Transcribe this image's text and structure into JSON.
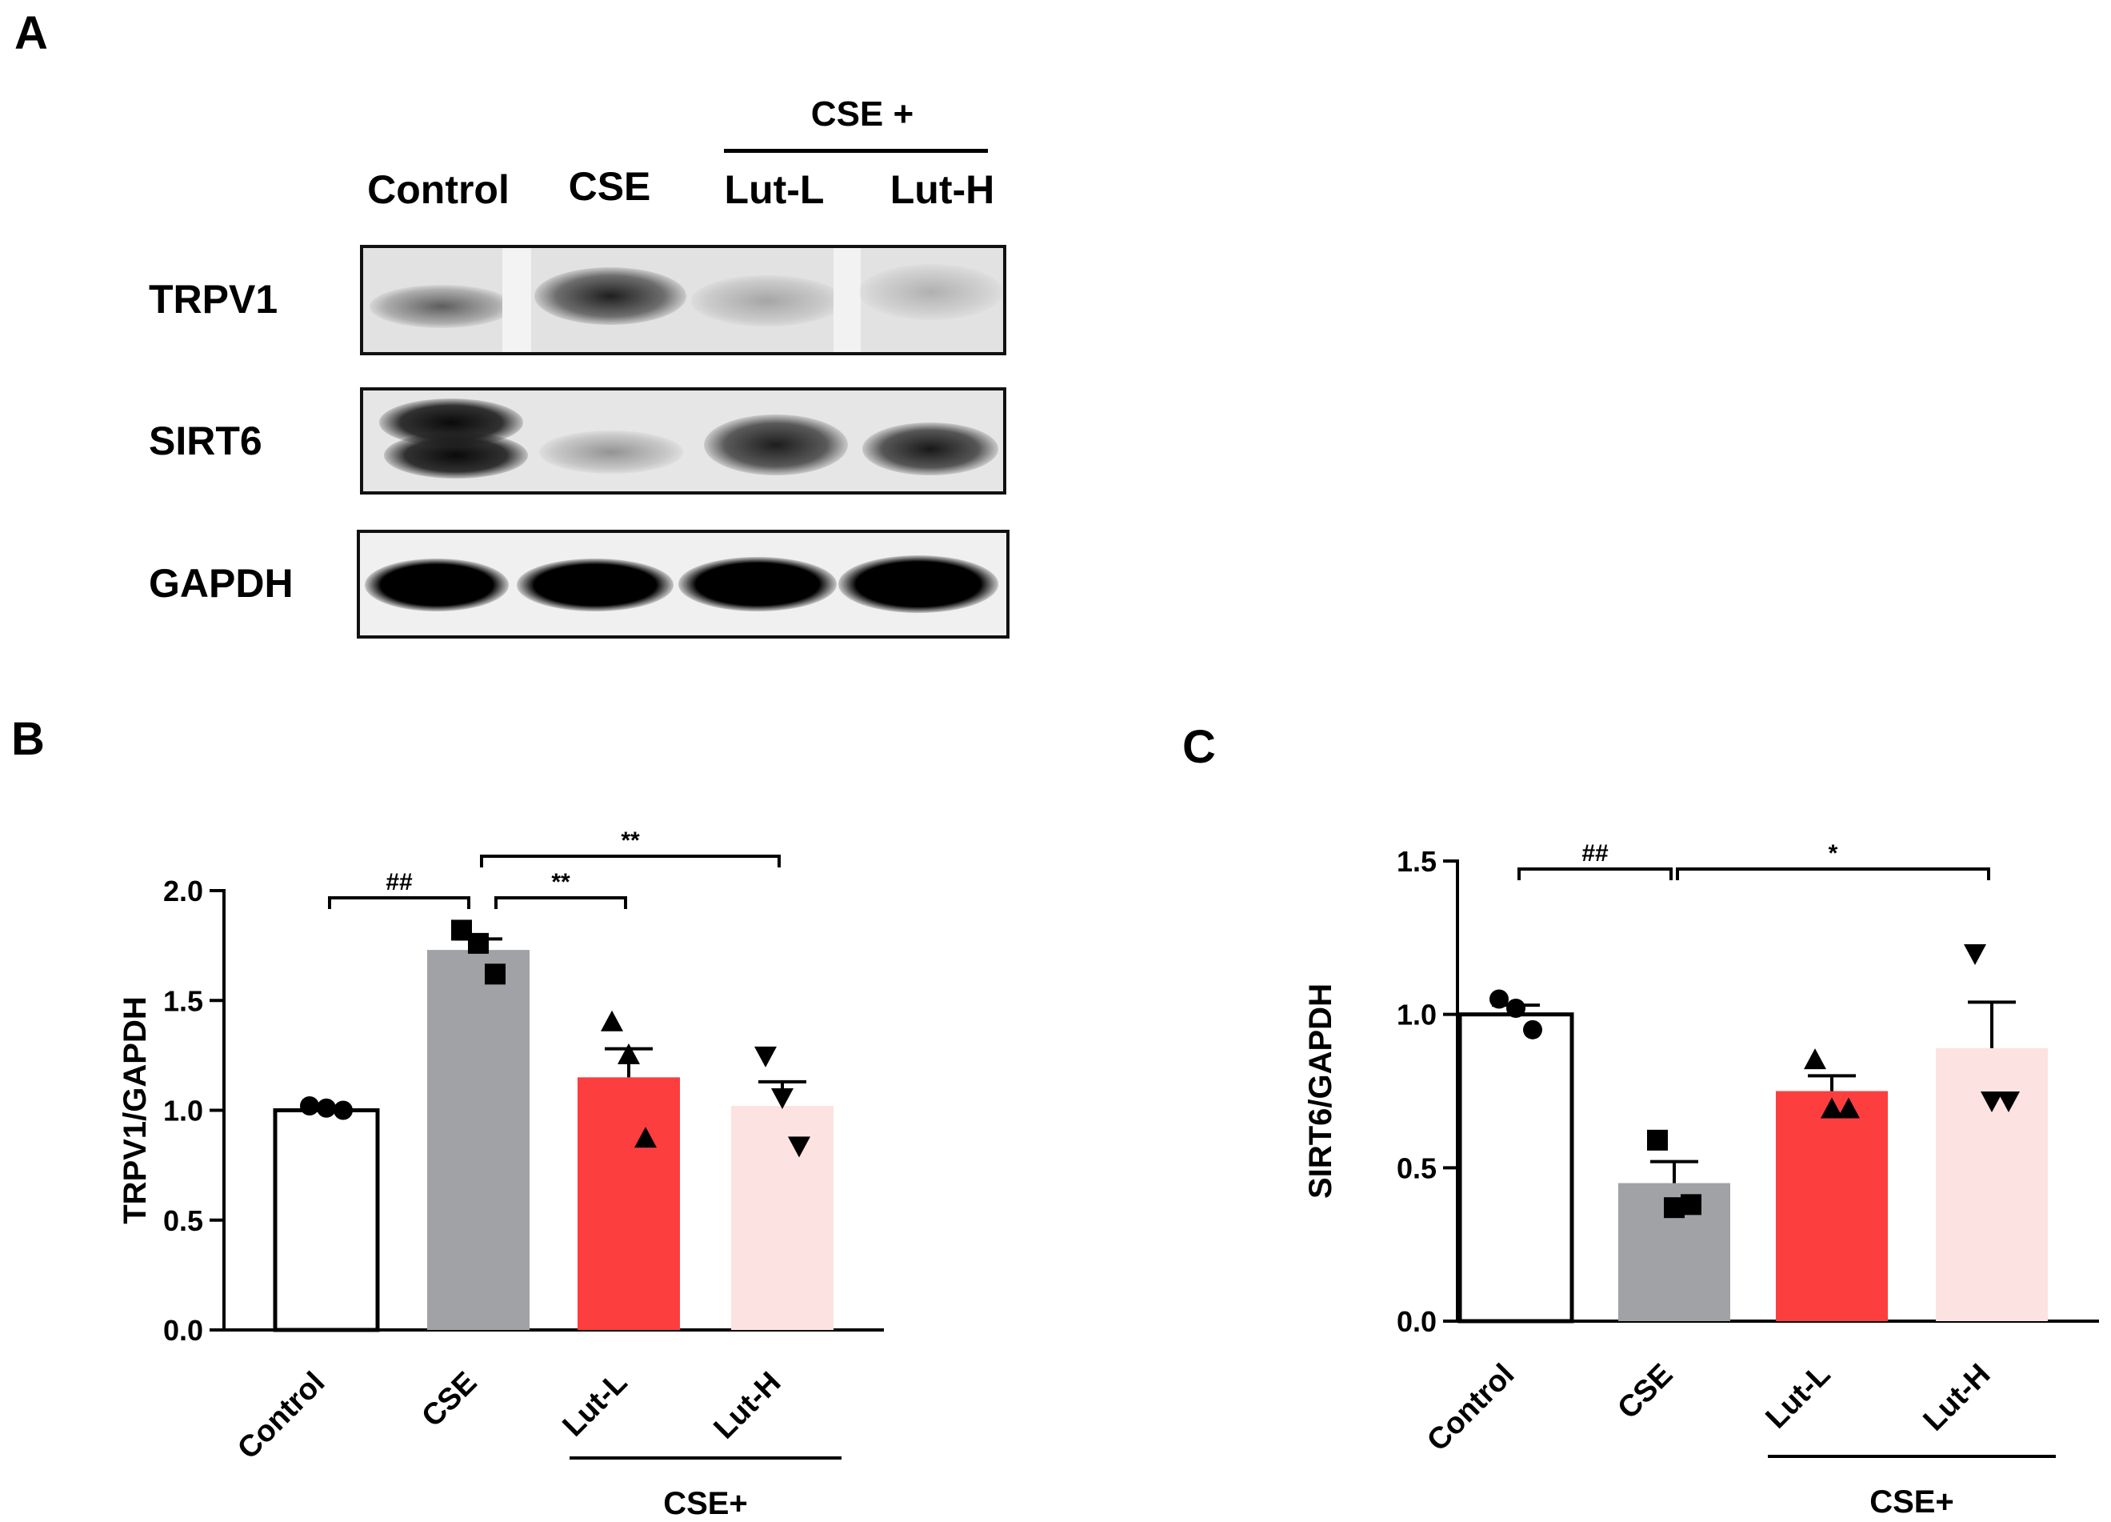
{
  "panels": {
    "a": "A",
    "b": "B",
    "c": "C"
  },
  "western_blot": {
    "group_label": "CSE +",
    "lanes": [
      "Control",
      "CSE",
      "Lut-L",
      "Lut-H"
    ],
    "rows": [
      "TRPV1",
      "SIRT6",
      "GAPDH"
    ]
  },
  "chart_data": [
    {
      "type": "bar",
      "panel": "B",
      "categories": [
        "Control",
        "CSE",
        "Lut-L",
        "Lut-H"
      ],
      "values": [
        1.0,
        1.73,
        1.15,
        1.02
      ],
      "errors": [
        0.0,
        0.05,
        0.13,
        0.11
      ],
      "points": [
        [
          1.02,
          1.01,
          1.0
        ],
        [
          1.82,
          1.76,
          1.62
        ],
        [
          1.4,
          1.25,
          0.87
        ],
        [
          1.25,
          1.06,
          0.84
        ]
      ],
      "markers": [
        "circle",
        "square",
        "triangle-up",
        "triangle-down"
      ],
      "colors": [
        "#ffffff",
        "#a0a2a6",
        "#fc3e3e",
        "#fde2e2"
      ],
      "ylabel": "TRPV1/GAPDH",
      "ylim": [
        0,
        2.0
      ],
      "yticks": [
        "0.0",
        "0.5",
        "1.0",
        "1.5",
        "2.0"
      ],
      "group_label": "CSE+",
      "significance": [
        {
          "from": "Control",
          "to": "CSE",
          "label": "##"
        },
        {
          "from": "CSE",
          "to": "Lut-L",
          "label": "**"
        },
        {
          "from": "CSE",
          "to": "Lut-H",
          "label": "**"
        }
      ]
    },
    {
      "type": "bar",
      "panel": "C",
      "categories": [
        "Control",
        "CSE",
        "Lut-L",
        "Lut-H"
      ],
      "values": [
        1.0,
        0.45,
        0.75,
        0.89
      ],
      "errors": [
        0.03,
        0.07,
        0.05,
        0.15
      ],
      "points": [
        [
          1.05,
          1.02,
          0.95
        ],
        [
          0.59,
          0.37,
          0.38
        ],
        [
          0.85,
          0.69,
          0.69
        ],
        [
          1.2,
          0.72,
          0.72
        ]
      ],
      "markers": [
        "circle",
        "square",
        "triangle-up",
        "triangle-down"
      ],
      "colors": [
        "#ffffff",
        "#a0a2a6",
        "#fc3e3e",
        "#fde2e2"
      ],
      "ylabel": "SIRT6/GAPDH",
      "ylim": [
        0,
        1.5
      ],
      "yticks": [
        "0.0",
        "0.5",
        "1.0",
        "1.5"
      ],
      "group_label": "CSE+",
      "significance": [
        {
          "from": "Control",
          "to": "CSE",
          "label": "##"
        },
        {
          "from": "CSE",
          "to": "Lut-H",
          "label": "*"
        }
      ]
    }
  ]
}
